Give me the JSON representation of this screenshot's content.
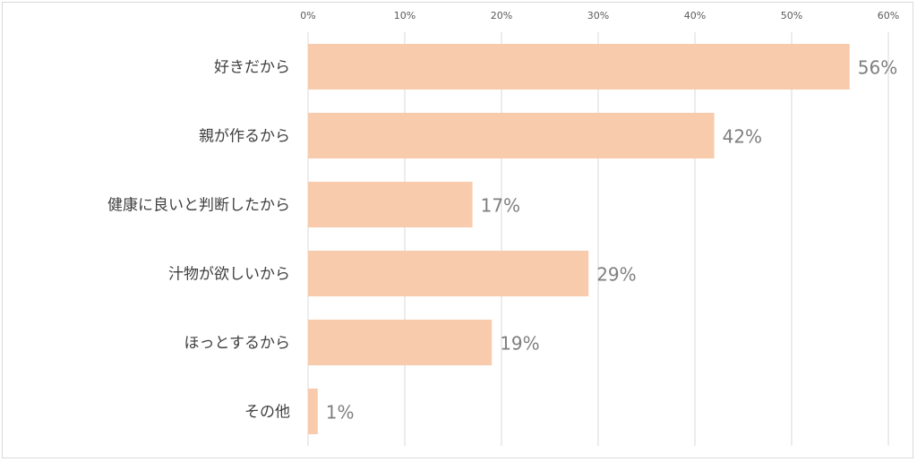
{
  "chart_data": {
    "type": "bar",
    "orientation": "horizontal",
    "title": "",
    "xlabel": "",
    "ylabel": "",
    "xlim": [
      0,
      60
    ],
    "ticks": [
      "0%",
      "10%",
      "20%",
      "30%",
      "40%",
      "50%",
      "60%"
    ],
    "tick_values": [
      0,
      10,
      20,
      30,
      40,
      50,
      60
    ],
    "categories": [
      "好きだから",
      "親が作るから",
      "健康に良いと判断したから",
      "汁物が欲しいから",
      "ほっとするから",
      "その他"
    ],
    "values": [
      56,
      42,
      17,
      29,
      19,
      1
    ],
    "value_labels": [
      "56%",
      "42%",
      "17%",
      "29%",
      "19%",
      "1%"
    ],
    "grid": true,
    "legend": "none",
    "colors": {
      "bar": "#F8CBAD",
      "grid": "#d9d9d9",
      "axis_text": "#595959",
      "value_text": "#7f7f7f"
    }
  }
}
